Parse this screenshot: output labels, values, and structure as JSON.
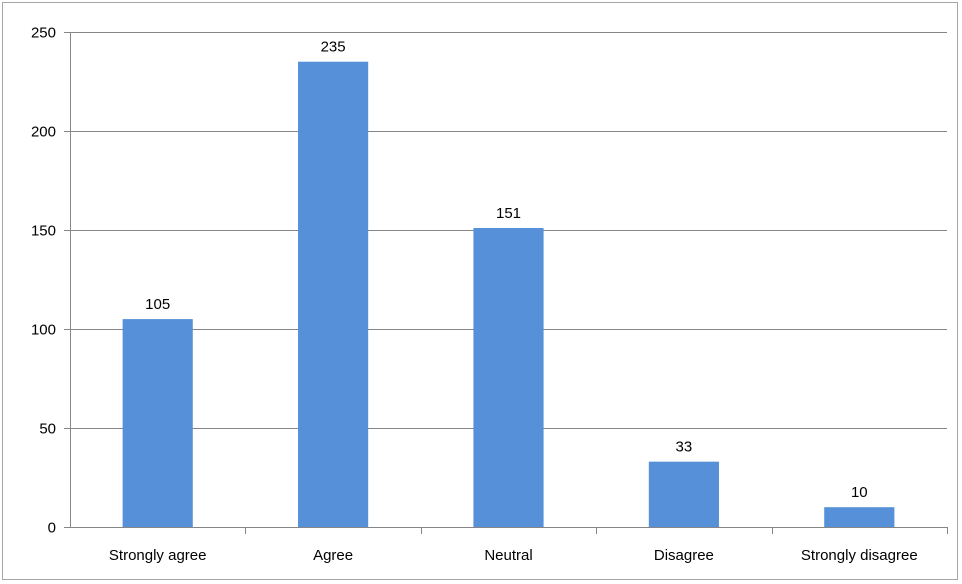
{
  "chart_data": {
    "type": "bar",
    "title": "",
    "xlabel": "",
    "ylabel": "",
    "categories": [
      "Strongly agree",
      "Agree",
      "Neutral",
      "Disagree",
      "Strongly disagree"
    ],
    "values": [
      105,
      235,
      151,
      33,
      10
    ],
    "data_labels": [
      "105",
      "235",
      "151",
      "33",
      "10"
    ],
    "ylim": [
      0,
      250
    ],
    "yticks": [
      0,
      50,
      100,
      150,
      200,
      250
    ],
    "ytick_labels": [
      "0",
      "50",
      "100",
      "150",
      "200",
      "250"
    ],
    "grid": true,
    "legend": "none",
    "bar_color": "#5590d8",
    "grid_color": "#868686",
    "axis_color": "#868686"
  }
}
